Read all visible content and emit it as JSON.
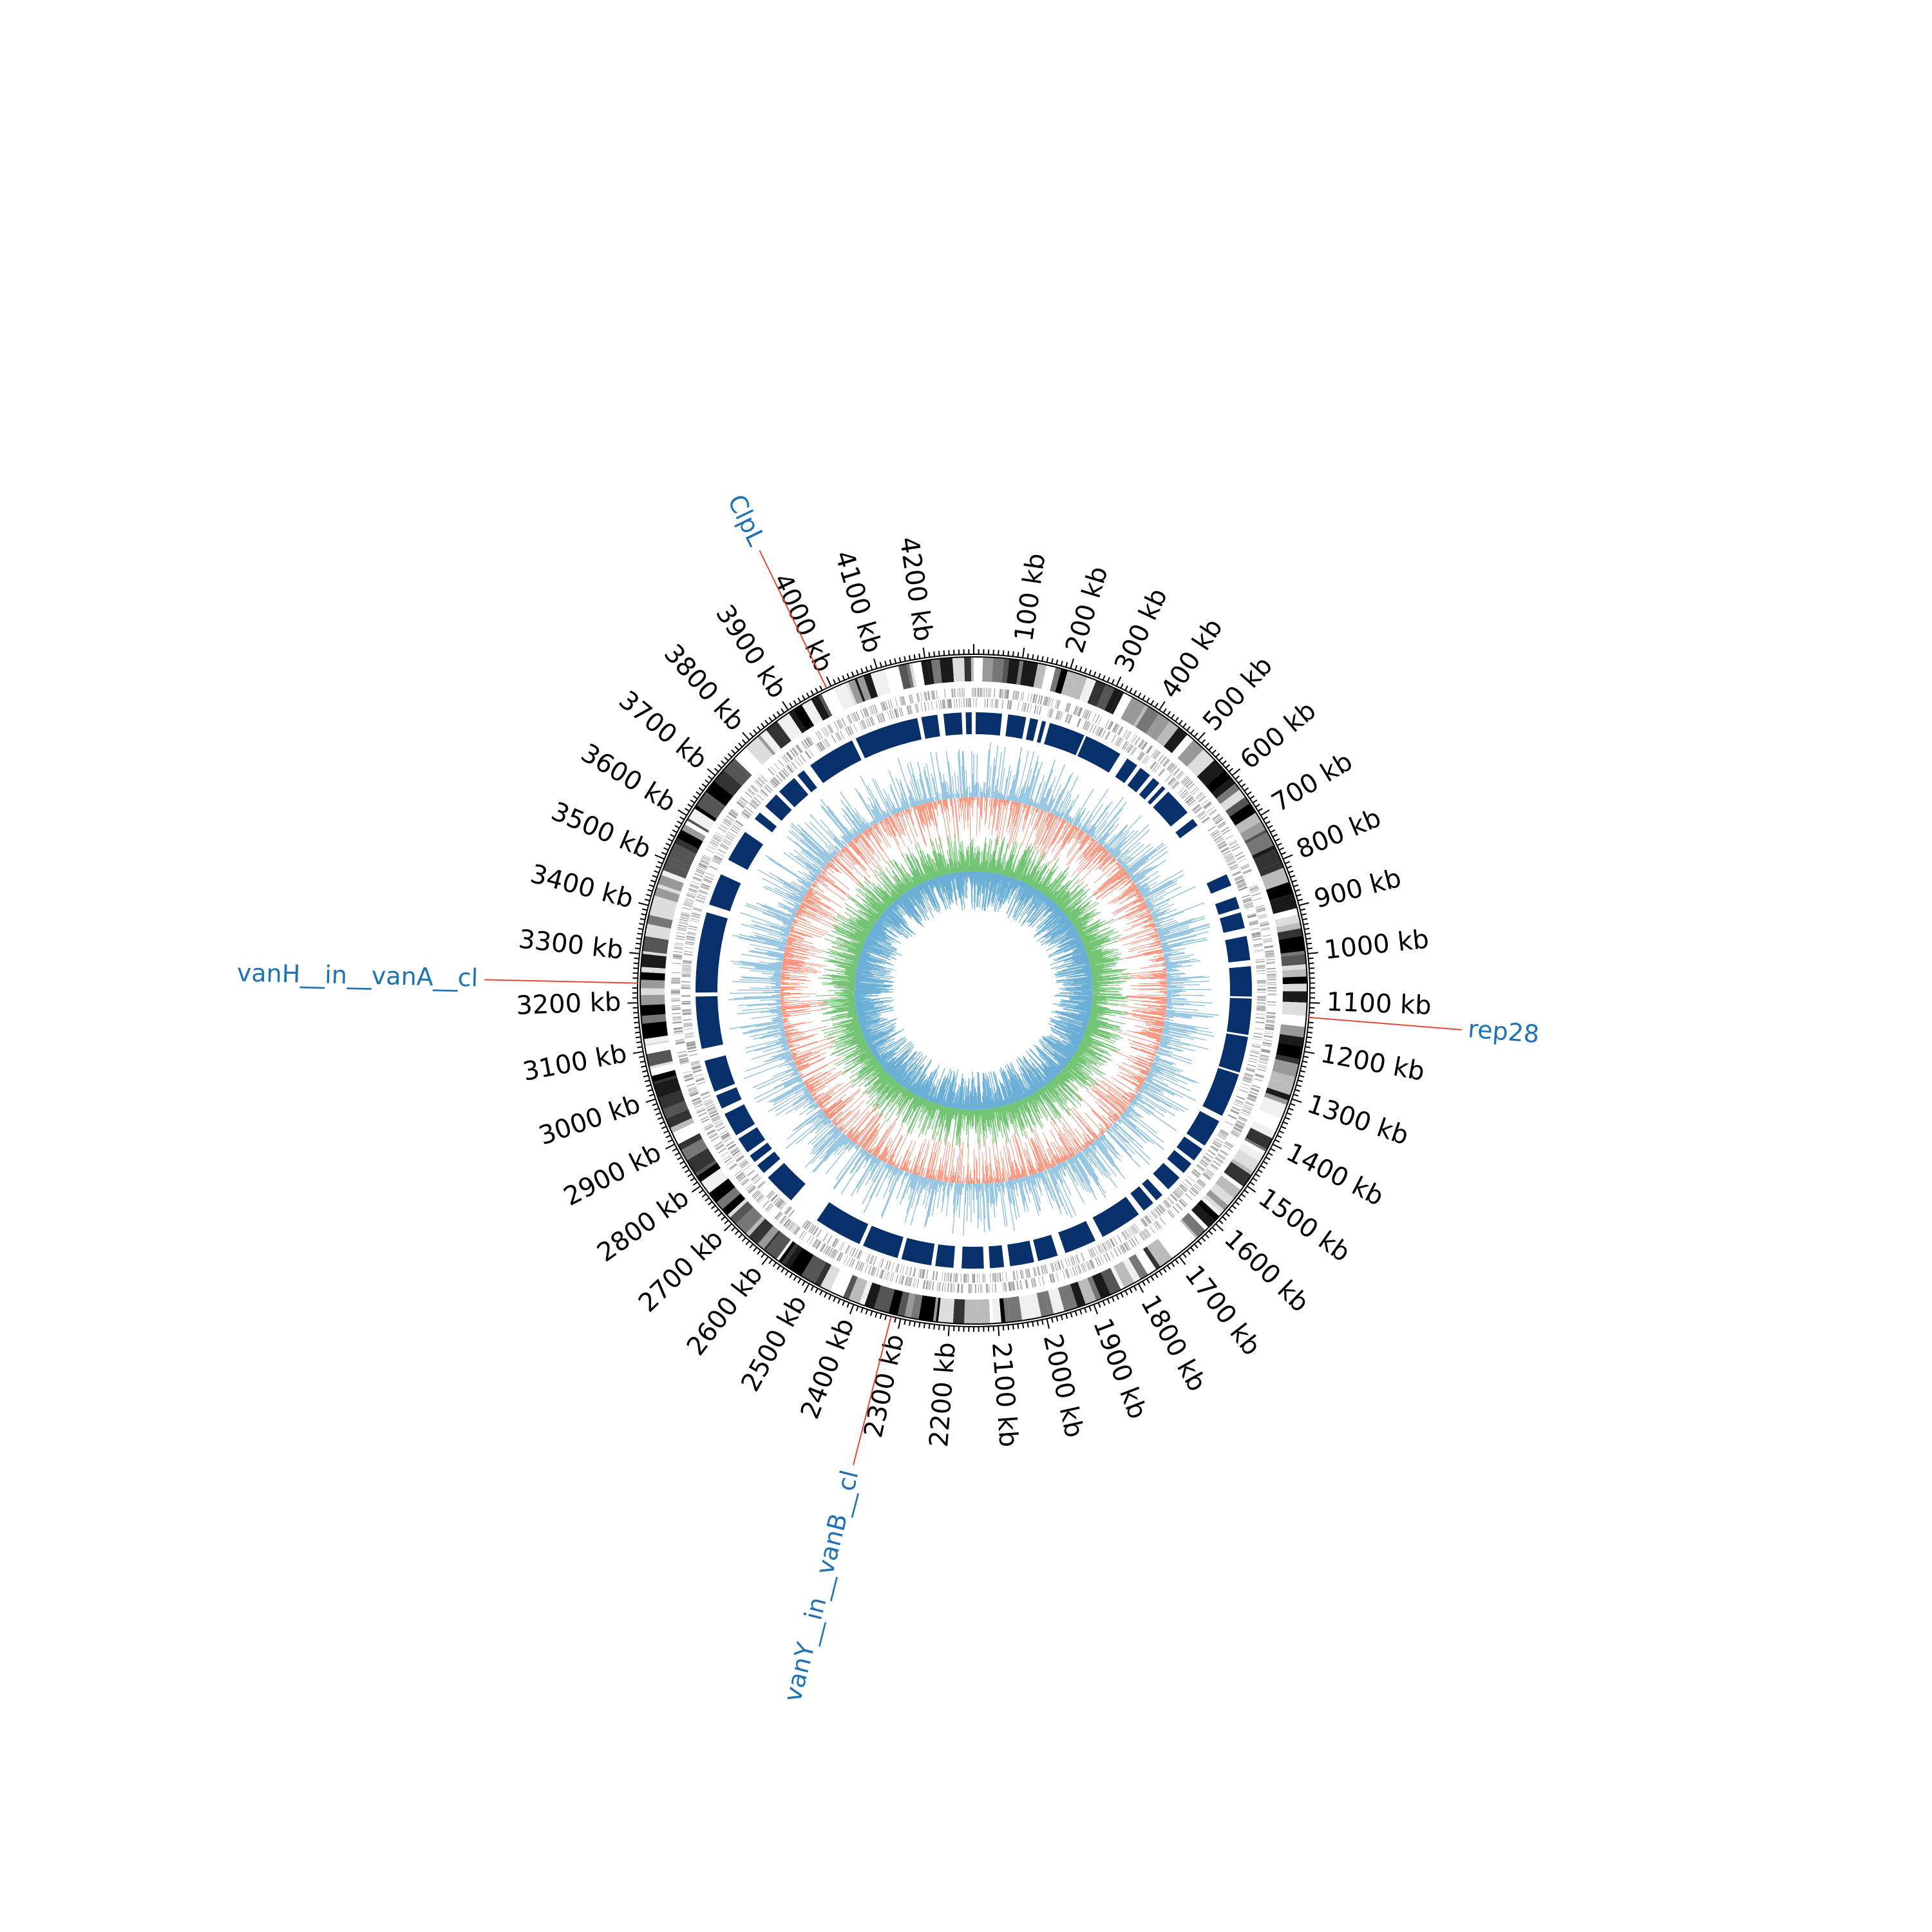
{
  "genome_map": {
    "tick_labels": [
      "100 kb",
      "200 kb",
      "300 kb",
      "400 kb",
      "500 kb",
      "600 kb",
      "700 kb",
      "800 kb",
      "900 kb",
      "1000 kb",
      "1100 kb",
      "1200 kb",
      "1300 kb",
      "1400 kb",
      "1500 kb",
      "1600 kb",
      "1700 kb",
      "1800 kb",
      "1900 kb",
      "2000 kb",
      "2100 kb",
      "2200 kb",
      "2300 kb",
      "2400 kb",
      "2500 kb",
      "2600 kb",
      "2700 kb",
      "2800 kb",
      "2900 kb",
      "3000 kb",
      "3100 kb",
      "3200 kb",
      "3300 kb",
      "3400 kb",
      "3500 kb",
      "3600 kb",
      "3700 kb",
      "3800 kb",
      "3900 kb",
      "4000 kb",
      "4100 kb",
      "4200 kb"
    ],
    "tick_positions_kb": [
      100,
      200,
      300,
      400,
      500,
      600,
      700,
      800,
      900,
      1000,
      1100,
      1200,
      1300,
      1400,
      1500,
      1600,
      1700,
      1800,
      1900,
      2000,
      2100,
      2200,
      2300,
      2400,
      2500,
      2600,
      2700,
      2800,
      2900,
      3000,
      3100,
      3200,
      3300,
      3400,
      3500,
      3600,
      3700,
      3800,
      3900,
      4000,
      4100,
      4200
    ],
    "genome_length_kb": 4300,
    "gene_labels": [
      {
        "text": "ClpL",
        "position_kb": 3990
      },
      {
        "text": "rep28",
        "position_kb": 1130
      },
      {
        "text": "vanY__in__vanB__cl",
        "position_kb": 2320
      },
      {
        "text": "vanH__in__vanA__cl",
        "position_kb": 3240
      }
    ],
    "colors": {
      "axis": "#000000",
      "label_text": "#2171b5",
      "label_line": "#e34a33",
      "feature_blocks": "#08306b",
      "track_light_blue": "#6baed6",
      "track_orange": "#fb6a4a",
      "track_green": "#74c476",
      "track_gray": "#969696"
    }
  }
}
